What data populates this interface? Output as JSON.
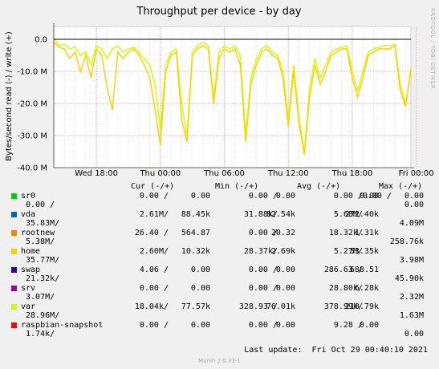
{
  "chart_data": {
    "type": "line",
    "title": "Throughput per device - by day",
    "ylabel": "Bytes/second read (-) / write (+)",
    "xlabel": "",
    "ylim": [
      -40,
      4
    ],
    "y_ticks": [
      {
        "value": 0,
        "label": "0.0"
      },
      {
        "value": -10,
        "label": "-10.0 M"
      },
      {
        "value": -20,
        "label": "-20.0 M"
      },
      {
        "value": -30,
        "label": "-30.0 M"
      },
      {
        "value": -40,
        "label": "-40.0 M"
      }
    ],
    "x_range": [
      0,
      33.5
    ],
    "x_ticks": [
      {
        "value": 4,
        "label": "Wed 18:00"
      },
      {
        "value": 10,
        "label": "Thu 00:00"
      },
      {
        "value": 16,
        "label": "Thu 06:00"
      },
      {
        "value": 22,
        "label": "Thu 12:00"
      },
      {
        "value": 28,
        "label": "Thu 18:00"
      },
      {
        "value": 34,
        "label": "Fri 00:00"
      }
    ],
    "grid": true,
    "series": [
      {
        "name": "var",
        "color": "#ccff00",
        "x": [
          0.0,
          0.5,
          1.0,
          1.5,
          2.0,
          2.5,
          3.0,
          3.5,
          4.0,
          4.5,
          5.0,
          5.5,
          6.0,
          6.5,
          7.0,
          7.5,
          8.0,
          8.5,
          9.0,
          9.5,
          10.0,
          10.5,
          11.0,
          11.5,
          12.0,
          12.5,
          13.0,
          13.5,
          14.0,
          14.5,
          15.0,
          15.5,
          16.0,
          16.5,
          17.0,
          17.5,
          18.0,
          18.5,
          19.0,
          19.5,
          20.0,
          20.5,
          21.0,
          21.5,
          22.0,
          22.5,
          23.0,
          23.5,
          24.0,
          24.5,
          25.0,
          25.5,
          26.0,
          26.5,
          27.0,
          27.5,
          28.0,
          28.5,
          29.0,
          29.5,
          30.0,
          30.5,
          31.0,
          31.5,
          32.0,
          32.5,
          33.0,
          33.5
        ],
        "values": [
          0.5,
          -2.0,
          -1.5,
          -3.0,
          -2.5,
          -5.0,
          -4.0,
          -8.0,
          -2.0,
          -3.0,
          -6.0,
          -3.0,
          -2.0,
          -4.0,
          -3.0,
          -2.5,
          -4.0,
          -6.0,
          -8.0,
          -14.0,
          -28.0,
          -8.0,
          -4.0,
          -3.0,
          -20.0,
          -30.0,
          -4.0,
          -2.0,
          -1.0,
          -2.0,
          -18.0,
          -4.0,
          -2.0,
          -3.0,
          -2.0,
          -5.0,
          -30.0,
          -12.0,
          -6.0,
          -3.0,
          -2.0,
          -4.0,
          -5.0,
          -10.0,
          -25.0,
          -8.0,
          -24.0,
          -35.0,
          -15.0,
          -6.0,
          -12.0,
          -8.0,
          -4.0,
          -3.0,
          -2.5,
          -2.0,
          -10.0,
          -16.0,
          -10.0,
          -4.0,
          -3.0,
          -2.5,
          -2.0,
          -2.0,
          -1.5,
          -14.0,
          -20.0,
          -10.0
        ]
      },
      {
        "name": "home",
        "color": "#ffcc00",
        "x": [
          0.0,
          0.5,
          1.0,
          1.5,
          2.0,
          2.5,
          3.0,
          3.5,
          4.0,
          4.5,
          5.0,
          5.5,
          6.0,
          6.5,
          7.0,
          7.5,
          8.0,
          8.5,
          9.0,
          9.5,
          10.0,
          10.5,
          11.0,
          11.5,
          12.0,
          12.5,
          13.0,
          13.5,
          14.0,
          14.5,
          15.0,
          15.5,
          16.0,
          16.5,
          17.0,
          17.5,
          18.0,
          18.5,
          19.0,
          19.5,
          20.0,
          20.5,
          21.0,
          21.5,
          22.0,
          22.5,
          23.0,
          23.5,
          24.0,
          24.5,
          25.0,
          25.5,
          26.0,
          26.5,
          27.0,
          27.5,
          28.0,
          28.5,
          29.0,
          29.5,
          30.0,
          30.5,
          31.0,
          31.5,
          32.0,
          32.5,
          33.0,
          33.5
        ],
        "values": [
          -1.0,
          -2.5,
          -3.0,
          -6.0,
          -4.0,
          -10.0,
          -5.0,
          -12.0,
          -3.0,
          -5.0,
          -15.0,
          -22.0,
          -4.0,
          -6.0,
          -4.0,
          -3.0,
          -5.0,
          -8.0,
          -12.0,
          -22.0,
          -33.0,
          -10.0,
          -5.0,
          -4.0,
          -25.0,
          -32.0,
          -5.0,
          -3.0,
          -2.0,
          -3.0,
          -20.0,
          -6.0,
          -3.0,
          -4.0,
          -3.0,
          -8.0,
          -32.0,
          -14.0,
          -8.0,
          -4.0,
          -3.0,
          -5.0,
          -6.0,
          -12.0,
          -27.0,
          -10.0,
          -26.0,
          -36.0,
          -18.0,
          -8.0,
          -14.0,
          -10.0,
          -5.0,
          -4.0,
          -3.0,
          -3.0,
          -12.0,
          -18.0,
          -12.0,
          -5.0,
          -4.0,
          -3.0,
          -3.0,
          -3.0,
          -2.0,
          -16.0,
          -21.0,
          -9.0
        ]
      }
    ]
  },
  "watermark": "RRDTOOL / TOBI OETIKER",
  "legend": {
    "headers": {
      "cur": "Cur (-/+)",
      "min": "Min (-/+)",
      "avg": "Avg (-/+)",
      "max": "Max (-/+)"
    },
    "rows": [
      {
        "name": "sr0",
        "color": "#00cc00",
        "cur_r": "0.00 /",
        "cur_w": "0.00",
        "min_r": "0.00 /",
        "min_w": "0.00",
        "avg_r": "0.00 /",
        "avg_w": "0.00",
        "max_r": "0.00 /",
        "max_w": "0.00",
        "line2_left": "0.00 /",
        "line2_right": "0.00"
      },
      {
        "name": "vda",
        "color": "#0066b3",
        "cur_r": "2.61M/",
        "cur_w": "88.45k",
        "min_r": "31.88k/",
        "min_w": "82.54k",
        "avg_r": "5.68M/",
        "avg_w": "272.40k",
        "max_r": "",
        "max_w": "",
        "line2_left": "35.83M/",
        "line2_right": "4.09M"
      },
      {
        "name": "rootnew",
        "color": "#ff8000",
        "cur_r": "26.40 /",
        "cur_w": "564.87",
        "min_r": "0.00 /",
        "min_w": "20.32",
        "avg_r": "18.32k/",
        "avg_w": "1.31k",
        "max_r": "",
        "max_w": "",
        "line2_left": "5.38M/",
        "line2_right": "258.76k"
      },
      {
        "name": "home",
        "color": "#ffcc00",
        "cur_r": "2.60M/",
        "cur_w": "10.32k",
        "min_r": "28.37k/",
        "min_w": "2.69k",
        "avg_r": "5.27M/",
        "avg_w": "53.35k",
        "max_r": "",
        "max_w": "",
        "line2_left": "35.77M/",
        "line2_right": "3.98M"
      },
      {
        "name": "swap",
        "color": "#330099",
        "cur_r": "4.06 /",
        "cur_w": "0.00",
        "min_r": "0.00 /",
        "min_w": "0.00",
        "avg_r": "286.63 /",
        "avg_w": "688.51",
        "max_r": "",
        "max_w": "",
        "line2_left": "21.32k/",
        "line2_right": "45.90k"
      },
      {
        "name": "srv",
        "color": "#990099",
        "cur_r": "0.00 /",
        "cur_w": "0.00",
        "min_r": "0.00 /",
        "min_w": "0.00",
        "avg_r": "28.80k/",
        "avg_w": "6.28k",
        "max_r": "",
        "max_w": "",
        "line2_left": "3.07M/",
        "line2_right": "2.32M"
      },
      {
        "name": "var",
        "color": "#ccff00",
        "cur_r": "18.04k/",
        "cur_w": "77.57k",
        "min_r": "328.93 /",
        "min_w": "76.01k",
        "avg_r": "378.99k/",
        "avg_w": "210.79k",
        "max_r": "",
        "max_w": "",
        "line2_left": "28.96M/",
        "line2_right": "1.63M"
      },
      {
        "name": "raspbian-snapshot",
        "color": "#ff0000",
        "cur_r": "0.00 /",
        "cur_w": "0.00",
        "min_r": "0.00 /",
        "min_w": "0.00",
        "avg_r": "9.28 /",
        "avg_w": "0.00",
        "max_r": "",
        "max_w": "",
        "line2_left": "1.74k/",
        "line2_right": "0.00"
      }
    ]
  },
  "last_update": "Last update:  Fri Oct 29 00:40:10 2021",
  "munin_version": "Munin 2.0.33-1"
}
